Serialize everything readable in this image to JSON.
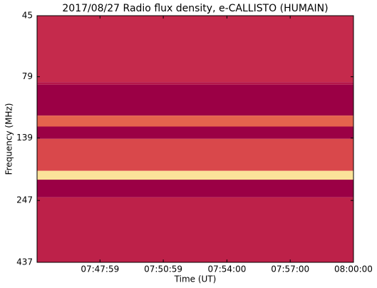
{
  "chart_data": {
    "type": "spectrogram",
    "title": "2017/08/27  Radio flux density, e-CALLISTO (HUMAIN)",
    "x_label": "Time (UT)",
    "y_label": "Frequency (MHz)",
    "xlim": [
      "07:45:00",
      "08:00:00"
    ],
    "xticks": [
      "07:47:59",
      "07:50:59",
      "07:54:00",
      "07:57:00",
      "08:00:00"
    ],
    "ylim": [
      45,
      437
    ],
    "yticks": [
      45,
      79,
      139,
      247,
      437
    ],
    "y_scale": "log",
    "y_inverted": true,
    "bands": [
      {
        "low": 45,
        "high": 83,
        "color": "#c52a4c"
      },
      {
        "low": 83,
        "high": 85,
        "color": "#b4164a"
      },
      {
        "low": 85,
        "high": 113,
        "color": "#9b0045"
      },
      {
        "low": 113,
        "high": 125,
        "color": "#e4634d"
      },
      {
        "low": 125,
        "high": 140,
        "color": "#9b0045"
      },
      {
        "low": 140,
        "high": 188,
        "color": "#d9484b"
      },
      {
        "low": 188,
        "high": 204,
        "color": "#fbe39a"
      },
      {
        "low": 204,
        "high": 240,
        "color": "#9b0045"
      },
      {
        "low": 240,
        "high": 437,
        "color": "#bd2149"
      }
    ]
  }
}
